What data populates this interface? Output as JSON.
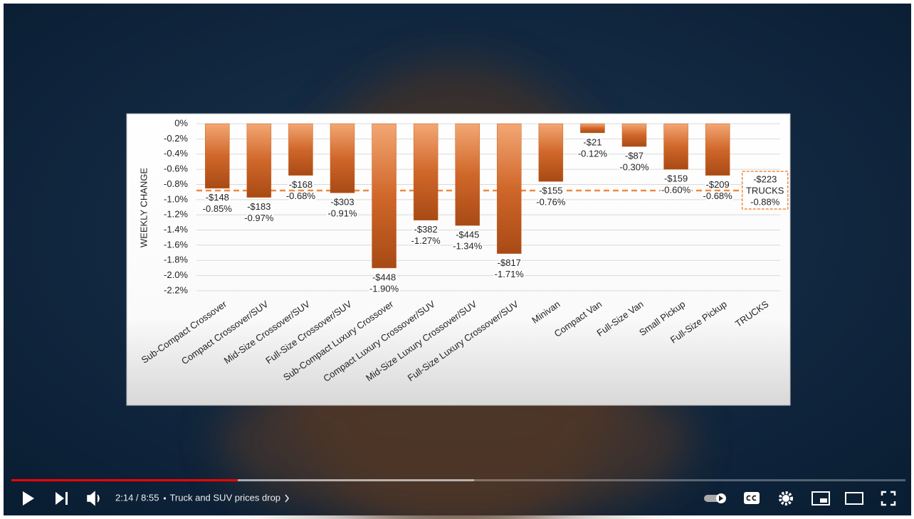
{
  "chart_data": {
    "type": "bar",
    "y_label": "WEEKLY CHANGE",
    "categories": [
      "Sub-Compact Crossover",
      "Compact Crossover/SUV",
      "Mid-Size Crossover/SUV",
      "Full-Size Crossover/SUV",
      "Sub-Compact Luxury Crossover",
      "Compact Luxury Crossover/SUV",
      "Mid-Size Luxury Crossover/SUV",
      "Full-Size Luxury Crossover/SUV",
      "Minivan",
      "Compact Van",
      "Full-Size Van",
      "Small Pickup",
      "Full-Size Pickup",
      "TRUCKS"
    ],
    "values": [
      -0.85,
      -0.97,
      -0.68,
      -0.91,
      -1.9,
      -1.27,
      -1.34,
      -1.71,
      -0.76,
      -0.12,
      -0.3,
      -0.6,
      -0.68,
      -0.88
    ],
    "value_labels": [
      "-0.85%",
      "-0.97%",
      "-0.68%",
      "-0.91%",
      "-1.90%",
      "-1.27%",
      "-1.34%",
      "-1.71%",
      "-0.76%",
      "-0.12%",
      "-0.30%",
      "-0.60%",
      "-0.68%",
      "-0.88%"
    ],
    "dollar_labels": [
      "-$148",
      "-$183",
      "-$168",
      "-$303",
      "-$448",
      "-$382",
      "-$445",
      "-$817",
      "-$155",
      "-$21",
      "-$87",
      "-$159",
      "-$209",
      "-$223"
    ],
    "last_as_average_line": true,
    "color": "#c8601f",
    "average_color": "#f0893e",
    "ylim": [
      -2.2,
      0
    ],
    "yticks": [
      {
        "value": 0,
        "label": "0%"
      },
      {
        "value": -0.2,
        "label": "-0.2%"
      },
      {
        "value": -0.4,
        "label": "-0.4%"
      },
      {
        "value": -0.6,
        "label": "-0.6%"
      },
      {
        "value": -0.8,
        "label": "-0.8%"
      },
      {
        "value": -1.0,
        "label": "-1.0%"
      },
      {
        "value": -1.2,
        "label": "-1.2%"
      },
      {
        "value": -1.4,
        "label": "-1.4%"
      },
      {
        "value": -1.6,
        "label": "-1.6%"
      },
      {
        "value": -1.8,
        "label": "-1.8%"
      },
      {
        "value": -2.0,
        "label": "-2.0%"
      },
      {
        "value": -2.2,
        "label": "-2.2%"
      }
    ],
    "grid": true
  },
  "player": {
    "time": "2:14 / 8:55",
    "title": "Truck and SUV prices drop"
  }
}
